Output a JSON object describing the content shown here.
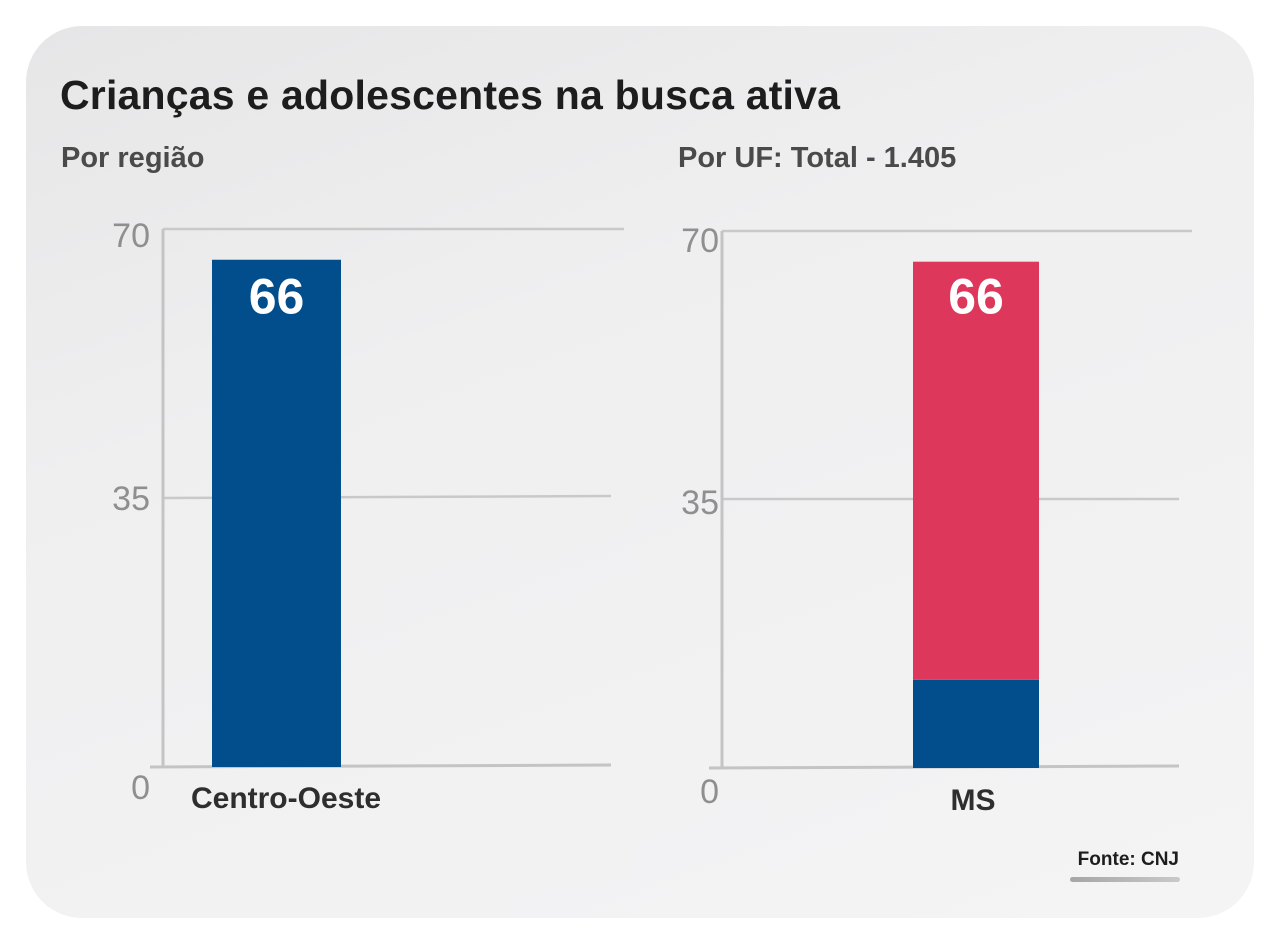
{
  "title": "Crianças e adolescentes na busca ativa",
  "source": "Fonte: CNJ",
  "colors": {
    "blue": "#024E8C",
    "red": "#DD385B",
    "grid": "#c9c9c9",
    "axis": "#c4c4c4"
  },
  "chart_data": [
    {
      "type": "bar",
      "subtitle": "Por região",
      "categories": [
        "Centro-Oeste"
      ],
      "values": [
        66
      ],
      "data_labels": [
        "66"
      ],
      "yticks": [
        "0",
        "35",
        "70"
      ],
      "ylim": [
        0,
        70
      ],
      "grid": true
    },
    {
      "type": "bar",
      "subtitle": "Por UF: Total - 1.405",
      "stacked": true,
      "categories": [
        "MS"
      ],
      "series": [
        {
          "values": [
            11.5
          ],
          "color": "#024E8C"
        },
        {
          "values": [
            54.5
          ],
          "color": "#DD385B"
        }
      ],
      "total_values": [
        66
      ],
      "data_labels": [
        "66"
      ],
      "yticks": [
        "0",
        "35",
        "70"
      ],
      "ylim": [
        0,
        70
      ],
      "grid": true
    }
  ]
}
